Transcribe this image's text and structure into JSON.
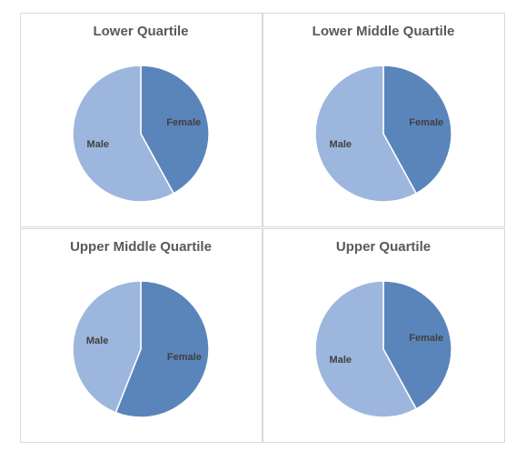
{
  "chart_data": [
    {
      "type": "pie",
      "title": "Lower Quartile",
      "categories": [
        "Female",
        "Male"
      ],
      "values": [
        42,
        58
      ],
      "colors": [
        "#5a85bb",
        "#9db6dd"
      ]
    },
    {
      "type": "pie",
      "title": "Lower Middle Quartile",
      "categories": [
        "Female",
        "Male"
      ],
      "values": [
        42,
        58
      ],
      "colors": [
        "#5a85bb",
        "#9db6dd"
      ]
    },
    {
      "type": "pie",
      "title": "Upper Middle Quartile",
      "categories": [
        "Female",
        "Male"
      ],
      "values": [
        56,
        44
      ],
      "colors": [
        "#5a85bb",
        "#9db6dd"
      ]
    },
    {
      "type": "pie",
      "title": "Upper Quartile",
      "categories": [
        "Female",
        "Male"
      ],
      "values": [
        42,
        58
      ],
      "colors": [
        "#5a85bb",
        "#9db6dd"
      ]
    }
  ]
}
